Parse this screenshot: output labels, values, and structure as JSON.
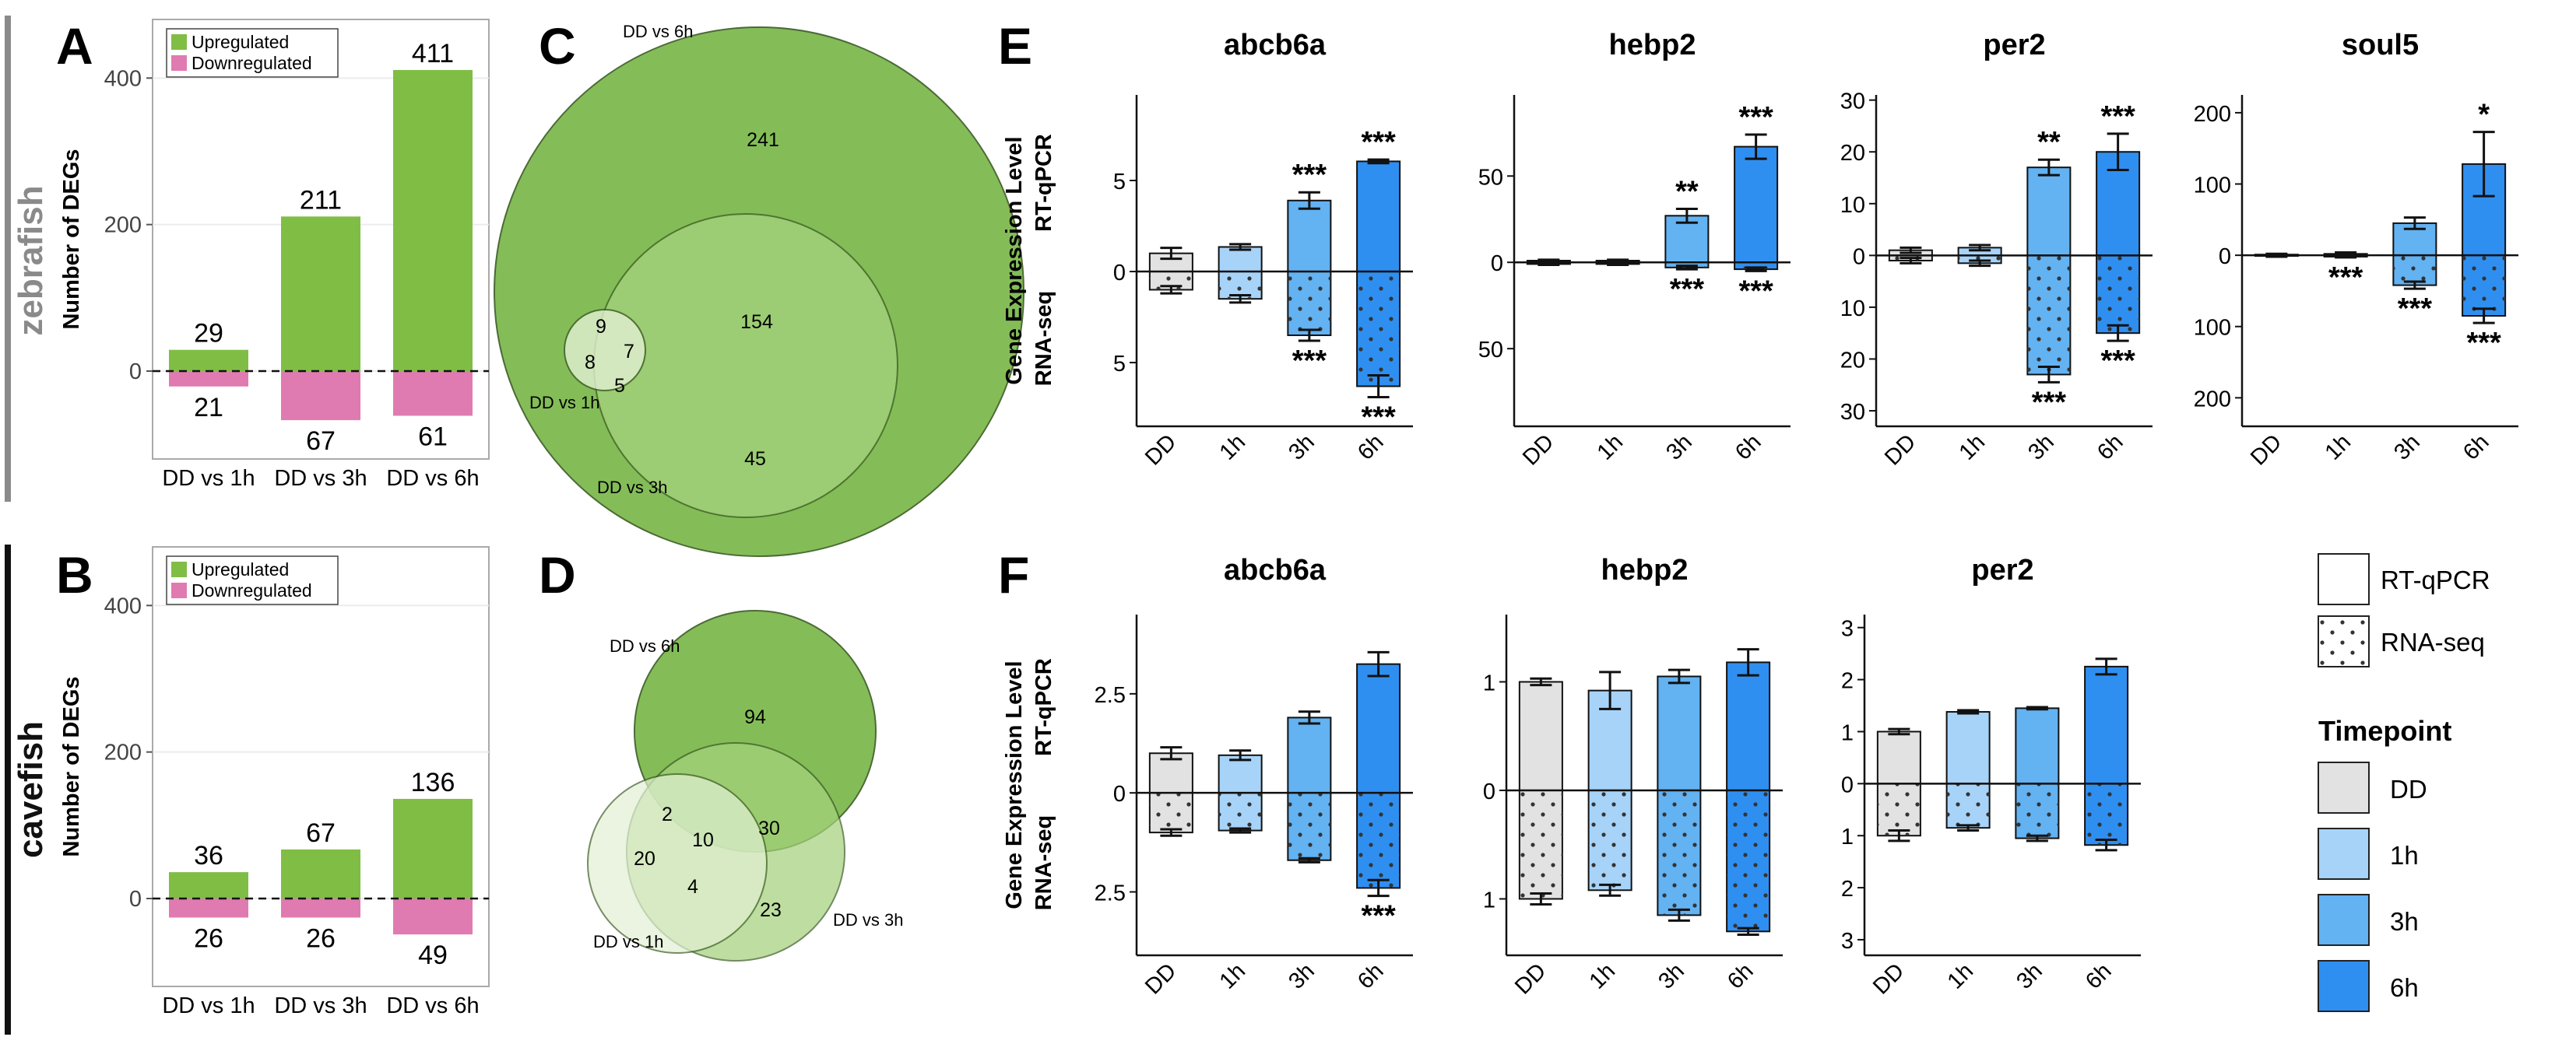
{
  "colors": {
    "up": "#80bd45",
    "down": "#df7bb0",
    "DD": "#e2e2e2",
    "1h": "#a7d3f8",
    "3h": "#63b2f2",
    "6h": "#2f8ff0",
    "venn_big": "#7ab84a",
    "venn_mid": "#a4d27c",
    "venn_small": "#e2f0d3"
  },
  "panel_letters": {
    "A": "A",
    "B": "B",
    "C": "C",
    "D": "D",
    "E": "E",
    "F": "F"
  },
  "species": {
    "zebrafish": "zebrafish",
    "cavefish": "cavefish"
  },
  "legend_ab": {
    "up": "Upregulated",
    "down": "Downregulated"
  },
  "legend_ef": {
    "rtqpcr": "RT-qPCR",
    "rnaseq": "RNA-seq",
    "timepoint_title": "Timepoint",
    "timepoints": [
      "DD",
      "1h",
      "3h",
      "6h"
    ]
  },
  "venn": {
    "C": {
      "labels": {
        "big": "DD vs 6h",
        "mid": "DD vs 3h",
        "small": "DD vs 1h"
      },
      "counts": {
        "only6h": "241",
        "six_three": "154",
        "only3h": "45",
        "only1h": "8",
        "one_six": "9",
        "one_three": "5",
        "all": "7"
      }
    },
    "D": {
      "labels": {
        "big": "DD vs 6h",
        "mid": "DD vs 3h",
        "small": "DD vs 1h"
      },
      "counts": {
        "only6h": "94",
        "six_three": "30",
        "only3h": "23",
        "only1h": "20",
        "one_six": "2",
        "one_three": "4",
        "all": "10"
      }
    }
  },
  "chart_data": [
    {
      "id": "A",
      "type": "bar",
      "title": "",
      "xlabel": "",
      "ylabel": "Number of DEGs",
      "ylim": [
        -120,
        480
      ],
      "yticks": [
        "0",
        "200",
        "400"
      ],
      "categories": [
        "DD vs 1h",
        "DD vs 3h",
        "DD vs 6h"
      ],
      "series": [
        {
          "name": "Upregulated",
          "values": [
            29,
            211,
            411
          ],
          "labels": [
            "29",
            "211",
            "411"
          ]
        },
        {
          "name": "Downregulated",
          "values": [
            21,
            67,
            61
          ],
          "labels": [
            "21",
            "67",
            "61"
          ]
        }
      ],
      "legend_position": "top-left"
    },
    {
      "id": "B",
      "type": "bar",
      "title": "",
      "xlabel": "",
      "ylabel": "Number of DEGs",
      "ylim": [
        -120,
        480
      ],
      "yticks": [
        "0",
        "200",
        "400"
      ],
      "categories": [
        "DD vs 1h",
        "DD vs 3h",
        "DD vs 6h"
      ],
      "series": [
        {
          "name": "Upregulated",
          "values": [
            36,
            67,
            136
          ],
          "labels": [
            "36",
            "67",
            "136"
          ]
        },
        {
          "name": "Downregulated",
          "values": [
            26,
            26,
            49
          ],
          "labels": [
            "26",
            "26",
            "49"
          ]
        }
      ],
      "legend_position": "top-left"
    },
    {
      "id": "E",
      "type": "bar",
      "ylabel_top": "RT-qPCR",
      "ylabel_bottom": "RNA-seq",
      "ylabel_main": "Gene Expression Level",
      "categories": [
        "DD",
        "1h",
        "3h",
        "6h"
      ],
      "genes": [
        {
          "title": "abcb6a",
          "ylim": [
            -8.5,
            9.7
          ],
          "yticks": [
            5,
            0,
            -5
          ],
          "yticklabels": [
            "5",
            "0",
            "5"
          ],
          "rt": [
            1.0,
            1.35,
            3.9,
            6.05
          ],
          "rt_err": [
            0.3,
            0.15,
            0.45,
            0.1
          ],
          "rt_star": [
            "",
            "",
            "***",
            "***"
          ],
          "seq": [
            -1.0,
            -1.5,
            -3.5,
            -6.3
          ],
          "seq_err": [
            0.2,
            0.2,
            0.3,
            0.6
          ],
          "seq_star": [
            "",
            "",
            "***",
            "***"
          ]
        },
        {
          "title": "hebp2",
          "ylim": [
            -95,
            97
          ],
          "yticks": [
            50,
            0,
            -50
          ],
          "yticklabels": [
            "50",
            "0",
            "50"
          ],
          "rt": [
            1,
            1,
            27,
            67
          ],
          "rt_err": [
            0.5,
            0.5,
            4,
            7
          ],
          "rt_star": [
            "",
            "",
            "**",
            "***"
          ],
          "seq": [
            -1,
            -1,
            -3,
            -4
          ],
          "seq_err": [
            0.5,
            0.5,
            1,
            1
          ],
          "seq_star": [
            "",
            "",
            "***",
            "***"
          ]
        },
        {
          "title": "per2",
          "ylim": [
            -33,
            31
          ],
          "yticks": [
            30,
            20,
            10,
            0,
            -10,
            -20,
            -30
          ],
          "yticklabels": [
            "30",
            "20",
            "10",
            "0",
            "10",
            "20",
            "30"
          ],
          "rt": [
            1,
            1.5,
            17,
            20
          ],
          "rt_err": [
            0.5,
            0.5,
            1.5,
            3.5
          ],
          "rt_star": [
            "",
            "",
            "**",
            "***"
          ],
          "seq": [
            -1,
            -1.5,
            -23,
            -15
          ],
          "seq_err": [
            0.5,
            0.5,
            1.5,
            1.5
          ],
          "seq_star": [
            "",
            "",
            "***",
            "***"
          ]
        },
        {
          "title": "soul5",
          "ylim": [
            -240,
            225
          ],
          "yticks": [
            200,
            100,
            0,
            -100,
            -200
          ],
          "yticklabels": [
            "200",
            "100",
            "0",
            "100",
            "200"
          ],
          "rt": [
            1,
            2,
            45,
            128
          ],
          "rt_err": [
            1,
            2,
            8,
            45
          ],
          "rt_star": [
            "",
            "",
            "",
            "*"
          ],
          "seq": [
            -1,
            -2,
            -42,
            -85
          ],
          "seq_err": [
            1,
            1,
            5,
            10
          ],
          "seq_star": [
            "",
            "***",
            "***",
            "***"
          ]
        }
      ]
    },
    {
      "id": "F",
      "type": "bar",
      "ylabel_top": "RT-qPCR",
      "ylabel_bottom": "RNA-seq",
      "ylabel_main": "Gene Expression Level",
      "categories": [
        "DD",
        "1h",
        "3h",
        "6h"
      ],
      "genes": [
        {
          "title": "abcb6a",
          "ylim": [
            -4.1,
            4.5
          ],
          "yticks": [
            2.5,
            0,
            -2.5
          ],
          "yticklabels": [
            "2.5",
            "0",
            "2.5"
          ],
          "rt": [
            1.0,
            0.95,
            1.9,
            3.25
          ],
          "rt_err": [
            0.15,
            0.12,
            0.15,
            0.3
          ],
          "rt_star": [
            "",
            "",
            "",
            ""
          ],
          "seq": [
            -1.0,
            -0.95,
            -1.7,
            -2.4
          ],
          "seq_err": [
            0.08,
            0.05,
            0.05,
            0.2
          ],
          "seq_star": [
            "",
            "",
            "",
            "***"
          ]
        },
        {
          "title": "hebp2",
          "ylim": [
            -1.52,
            1.62
          ],
          "yticks": [
            1,
            0,
            -1
          ],
          "yticklabels": [
            "1",
            "0",
            "1"
          ],
          "rt": [
            1.0,
            0.92,
            1.05,
            1.18
          ],
          "rt_err": [
            0.03,
            0.17,
            0.06,
            0.12
          ],
          "rt_star": [
            "",
            "",
            "",
            ""
          ],
          "seq": [
            -1.0,
            -0.92,
            -1.15,
            -1.3
          ],
          "seq_err": [
            0.05,
            0.05,
            0.05,
            0.03
          ],
          "seq_star": [
            "",
            "",
            "",
            ""
          ]
        },
        {
          "title": "per2",
          "ylim": [
            -3.3,
            3.25
          ],
          "yticks": [
            3,
            2,
            1,
            0,
            -1,
            -2,
            -3
          ],
          "yticklabels": [
            "3",
            "2",
            "1",
            "0",
            "1",
            "2",
            "3"
          ],
          "rt": [
            1.0,
            1.38,
            1.45,
            2.25
          ],
          "rt_err": [
            0.05,
            0.03,
            0.02,
            0.15
          ],
          "rt_star": [
            "",
            "",
            "",
            ""
          ],
          "seq": [
            -1.0,
            -0.85,
            -1.05,
            -1.18
          ],
          "seq_err": [
            0.1,
            0.05,
            0.05,
            0.1
          ],
          "seq_star": [
            "",
            "",
            "",
            ""
          ]
        }
      ]
    }
  ]
}
